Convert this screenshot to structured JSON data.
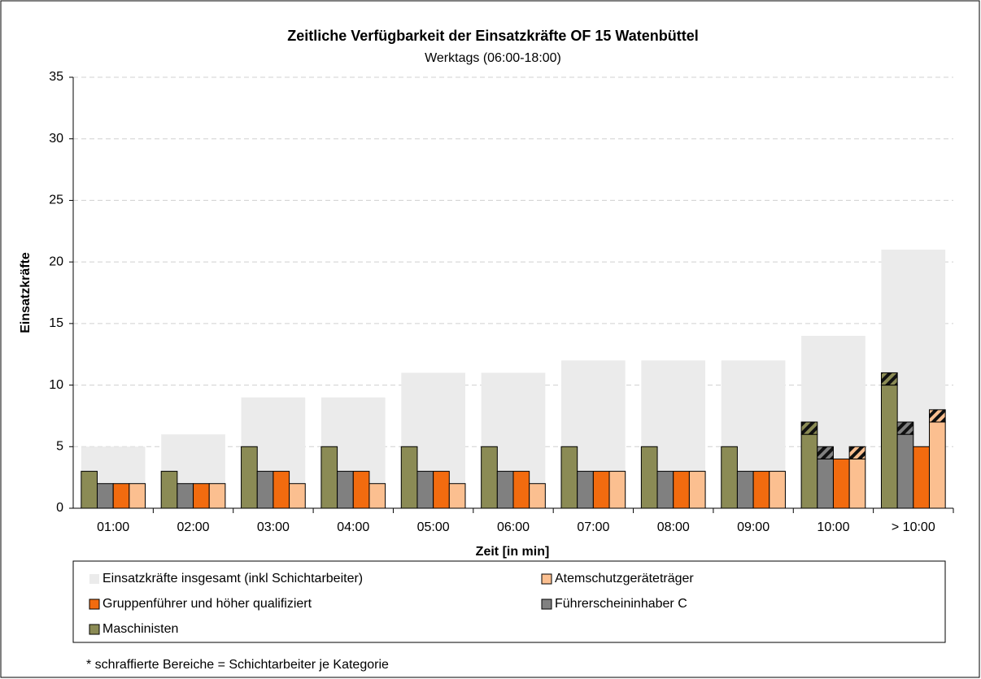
{
  "chart_data": {
    "type": "bar",
    "title": "Zeitliche Verfügbarkeit der Einsatzkräfte OF 15 Watenbüttel",
    "subtitle": "Werktags (06:00-18:00)",
    "x_label": "Zeit [in min]",
    "y_label": "Einsatzkräfte",
    "footnote": "* schraffierte Bereiche = Schichtarbeiter je Kategorie",
    "categories": [
      "01:00",
      "02:00",
      "03:00",
      "04:00",
      "05:00",
      "06:00",
      "07:00",
      "08:00",
      "09:00",
      "10:00",
      "> 10:00"
    ],
    "background_series": {
      "name": "Einsatzkräfte insgesamt (inkl Schichtarbeiter)",
      "color": "#ebebeb",
      "values": [
        5,
        6,
        9,
        9,
        11,
        11,
        12,
        12,
        12,
        14,
        21
      ]
    },
    "series": [
      {
        "name": "Maschinisten",
        "color": "#8b8b55",
        "values": [
          3,
          3,
          5,
          5,
          5,
          5,
          5,
          5,
          5,
          6,
          10
        ],
        "shift_values": [
          null,
          null,
          null,
          null,
          null,
          null,
          null,
          null,
          null,
          1,
          1
        ]
      },
      {
        "name": "Führerscheininhaber C",
        "color": "#808080",
        "values": [
          2,
          2,
          3,
          3,
          3,
          3,
          3,
          3,
          3,
          4,
          6
        ],
        "shift_values": [
          null,
          null,
          null,
          null,
          null,
          null,
          null,
          null,
          null,
          1,
          1
        ]
      },
      {
        "name": "Gruppenführer und höher qualifiziert",
        "color": "#f26b0f",
        "values": [
          2,
          2,
          3,
          3,
          3,
          3,
          3,
          3,
          3,
          4,
          5
        ]
      },
      {
        "name": "Atemschutzgeräteträger",
        "color": "#fbbf90",
        "values": [
          2,
          2,
          2,
          2,
          2,
          2,
          3,
          3,
          3,
          4,
          7
        ],
        "shift_values": [
          null,
          null,
          null,
          null,
          null,
          null,
          null,
          null,
          null,
          1,
          1
        ]
      }
    ],
    "ylim": [
      0,
      35
    ],
    "yticks": [
      0,
      5,
      10,
      15,
      20,
      25,
      30,
      35
    ],
    "grid": true
  }
}
